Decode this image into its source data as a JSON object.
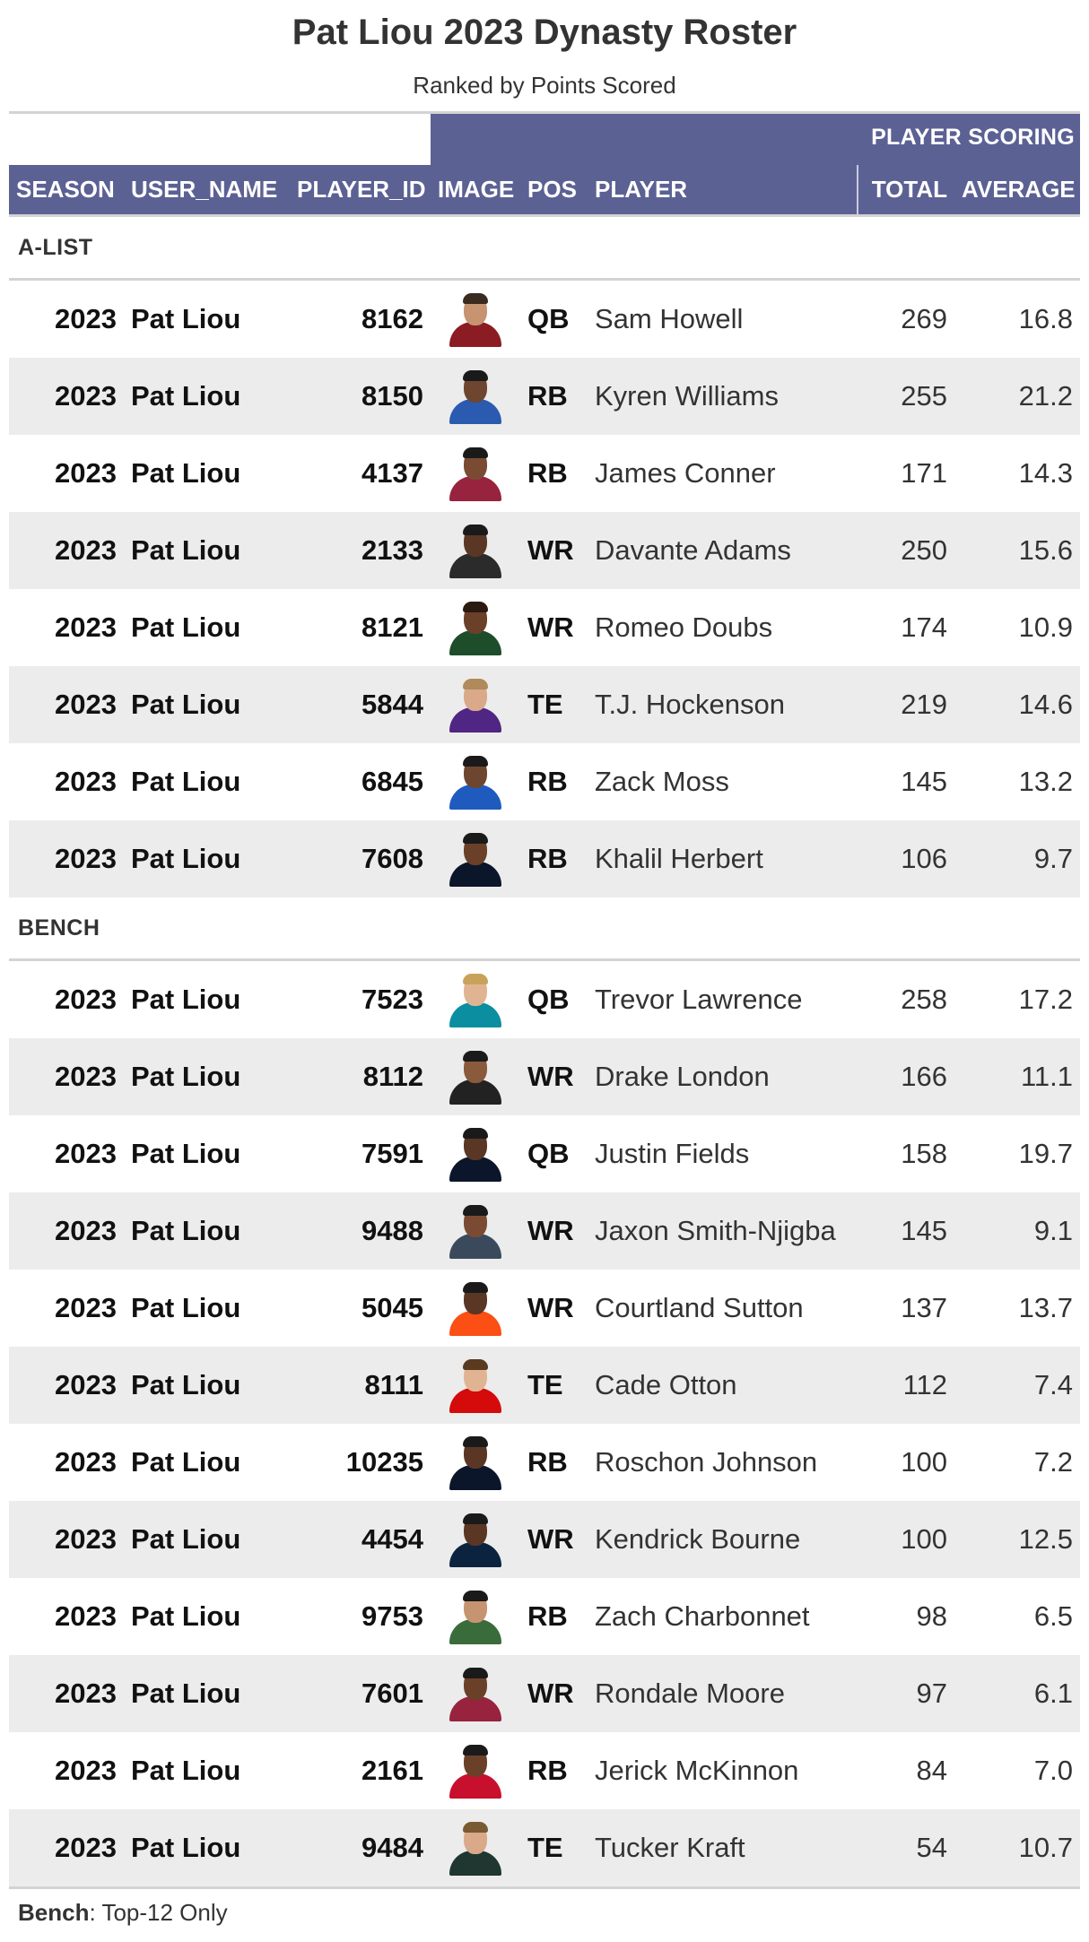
{
  "title": "Pat Liou 2023 Dynasty Roster",
  "subtitle": "Ranked by Points Scored",
  "spanner_label": "PLAYER SCORING",
  "columns": {
    "season": "SEASON",
    "user_name": "USER_NAME",
    "player_id": "PLAYER_ID",
    "image": "IMAGE",
    "pos": "POS",
    "player": "PLAYER",
    "total": "TOTAL",
    "average": "AVERAGE"
  },
  "groups": [
    {
      "label": "A-LIST",
      "rows": [
        {
          "season": "2023",
          "user": "Pat Liou",
          "id": "8162",
          "pos": "QB",
          "player": "Sam Howell",
          "total": "269",
          "avg": "16.8",
          "jersey": "#8b1c24",
          "skin": "#c69470",
          "hair": "#3a2a20"
        },
        {
          "season": "2023",
          "user": "Pat Liou",
          "id": "8150",
          "pos": "RB",
          "player": "Kyren Williams",
          "total": "255",
          "avg": "21.2",
          "jersey": "#2a5bb0",
          "skin": "#6e4630",
          "hair": "#1a1a1a"
        },
        {
          "season": "2023",
          "user": "Pat Liou",
          "id": "4137",
          "pos": "RB",
          "player": "James Conner",
          "total": "171",
          "avg": "14.3",
          "jersey": "#97233f",
          "skin": "#7a4b32",
          "hair": "#1a1a1a"
        },
        {
          "season": "2023",
          "user": "Pat Liou",
          "id": "2133",
          "pos": "WR",
          "player": "Davante Adams",
          "total": "250",
          "avg": "15.6",
          "jersey": "#2b2b2b",
          "skin": "#5a3724",
          "hair": "#1a1a1a"
        },
        {
          "season": "2023",
          "user": "Pat Liou",
          "id": "8121",
          "pos": "WR",
          "player": "Romeo Doubs",
          "total": "174",
          "avg": "10.9",
          "jersey": "#1e4d2b",
          "skin": "#6b4029",
          "hair": "#2a1a10"
        },
        {
          "season": "2023",
          "user": "Pat Liou",
          "id": "5844",
          "pos": "TE",
          "player": "T.J. Hockenson",
          "total": "219",
          "avg": "14.6",
          "jersey": "#4f2683",
          "skin": "#d9a98a",
          "hair": "#b08a5a"
        },
        {
          "season": "2023",
          "user": "Pat Liou",
          "id": "6845",
          "pos": "RB",
          "player": "Zack Moss",
          "total": "145",
          "avg": "13.2",
          "jersey": "#1f5bbf",
          "skin": "#6e4630",
          "hair": "#1a1a1a"
        },
        {
          "season": "2023",
          "user": "Pat Liou",
          "id": "7608",
          "pos": "RB",
          "player": "Khalil Herbert",
          "total": "106",
          "avg": "9.7",
          "jersey": "#0b162a",
          "skin": "#6b4029",
          "hair": "#1a1a1a"
        }
      ]
    },
    {
      "label": "BENCH",
      "rows": [
        {
          "season": "2023",
          "user": "Pat Liou",
          "id": "7523",
          "pos": "QB",
          "player": "Trevor Lawrence",
          "total": "258",
          "avg": "17.2",
          "jersey": "#0a8ea0",
          "skin": "#e0b493",
          "hair": "#c9a25a"
        },
        {
          "season": "2023",
          "user": "Pat Liou",
          "id": "8112",
          "pos": "WR",
          "player": "Drake London",
          "total": "166",
          "avg": "11.1",
          "jersey": "#222222",
          "skin": "#8a5a3c",
          "hair": "#1a1a1a"
        },
        {
          "season": "2023",
          "user": "Pat Liou",
          "id": "7591",
          "pos": "QB",
          "player": "Justin Fields",
          "total": "158",
          "avg": "19.7",
          "jersey": "#0b162a",
          "skin": "#5a3724",
          "hair": "#1a1a1a"
        },
        {
          "season": "2023",
          "user": "Pat Liou",
          "id": "9488",
          "pos": "WR",
          "player": "Jaxon Smith-Njigba",
          "total": "145",
          "avg": "9.1",
          "jersey": "#3a4a5c",
          "skin": "#7a4b32",
          "hair": "#1a1a1a"
        },
        {
          "season": "2023",
          "user": "Pat Liou",
          "id": "5045",
          "pos": "WR",
          "player": "Courtland Sutton",
          "total": "137",
          "avg": "13.7",
          "jersey": "#fb4f14",
          "skin": "#5a3724",
          "hair": "#1a1a1a"
        },
        {
          "season": "2023",
          "user": "Pat Liou",
          "id": "8111",
          "pos": "TE",
          "player": "Cade Otton",
          "total": "112",
          "avg": "7.4",
          "jersey": "#d50a0a",
          "skin": "#e0b493",
          "hair": "#5a3a20"
        },
        {
          "season": "2023",
          "user": "Pat Liou",
          "id": "10235",
          "pos": "RB",
          "player": "Roschon Johnson",
          "total": "100",
          "avg": "7.2",
          "jersey": "#0b162a",
          "skin": "#5a3724",
          "hair": "#1a1a1a"
        },
        {
          "season": "2023",
          "user": "Pat Liou",
          "id": "4454",
          "pos": "WR",
          "player": "Kendrick Bourne",
          "total": "100",
          "avg": "12.5",
          "jersey": "#0c2340",
          "skin": "#5a3724",
          "hair": "#1a1a1a"
        },
        {
          "season": "2023",
          "user": "Pat Liou",
          "id": "9753",
          "pos": "RB",
          "player": "Zach Charbonnet",
          "total": "98",
          "avg": "6.5",
          "jersey": "#3a6b3a",
          "skin": "#c69470",
          "hair": "#1a1a1a"
        },
        {
          "season": "2023",
          "user": "Pat Liou",
          "id": "7601",
          "pos": "WR",
          "player": "Rondale Moore",
          "total": "97",
          "avg": "6.1",
          "jersey": "#97233f",
          "skin": "#6b4029",
          "hair": "#1a1a1a"
        },
        {
          "season": "2023",
          "user": "Pat Liou",
          "id": "2161",
          "pos": "RB",
          "player": "Jerick McKinnon",
          "total": "84",
          "avg": "7.0",
          "jersey": "#c8102e",
          "skin": "#6b4029",
          "hair": "#1a1a1a"
        },
        {
          "season": "2023",
          "user": "Pat Liou",
          "id": "9484",
          "pos": "TE",
          "player": "Tucker Kraft",
          "total": "54",
          "avg": "10.7",
          "jersey": "#203731",
          "skin": "#d9a98a",
          "hair": "#7a5a30"
        }
      ]
    }
  ],
  "footnote": {
    "bold": "Bench",
    "text": ": Top-12 Only"
  }
}
